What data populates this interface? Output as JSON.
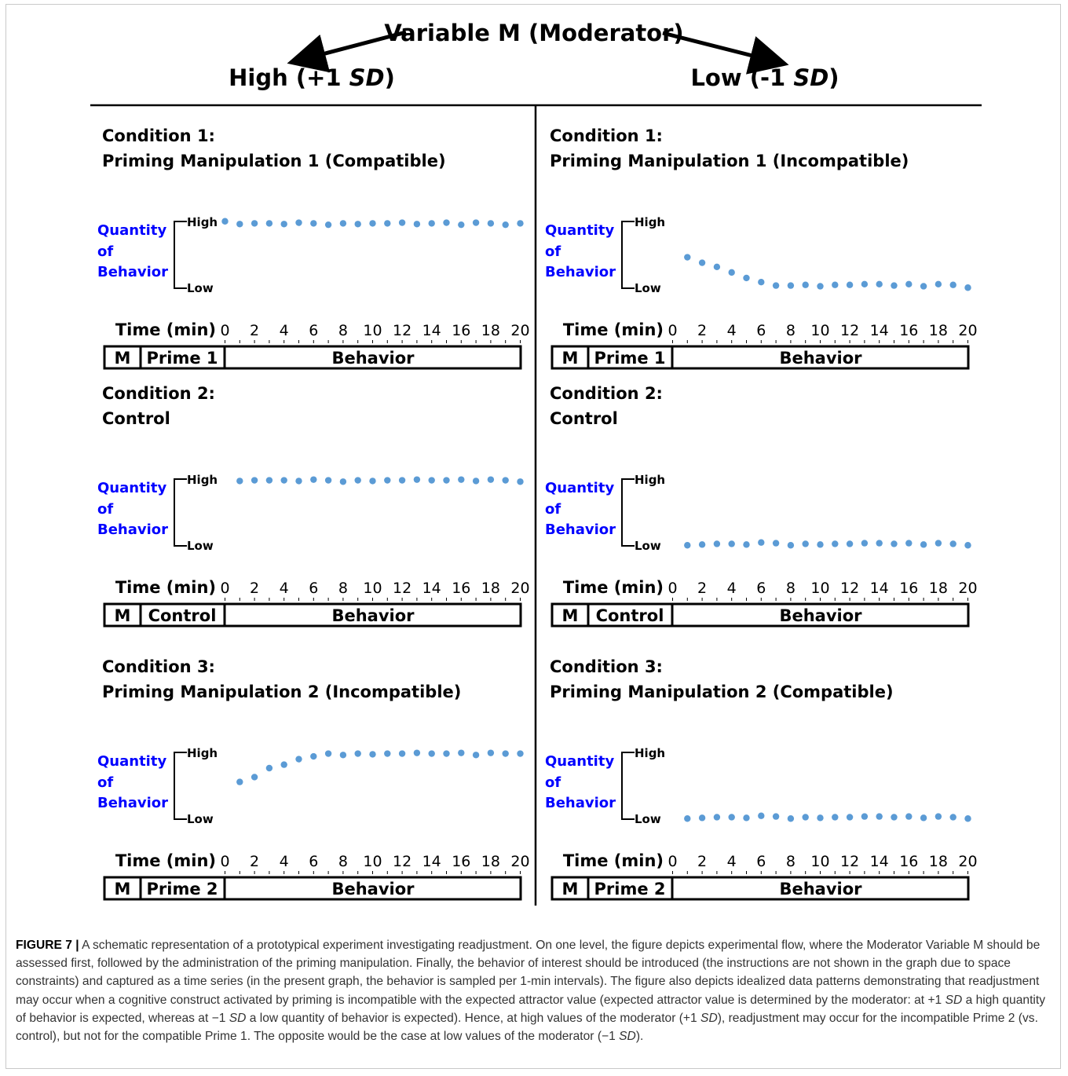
{
  "figure": {
    "moderator_title": "Variable M (Moderator)",
    "columns": [
      {
        "label_pre": "High (+1 ",
        "label_sd": "SD",
        "label_post": ")"
      },
      {
        "label_pre": "Low (-1 ",
        "label_sd": "SD",
        "label_post": ")"
      }
    ],
    "y_label_lines": [
      "Quantity",
      "of",
      "Behavior"
    ],
    "y_high": "High",
    "y_low": "Low",
    "time_label": "Time (min)",
    "time_ticks": [
      "0",
      "2",
      "4",
      "6",
      "8",
      "10",
      "12",
      "14",
      "16",
      "18",
      "20"
    ],
    "flow_m": "M",
    "flow_behavior": "Behavior",
    "colors": {
      "dots": "#5b9bd5",
      "axis_label": "#0000ff"
    },
    "panels": [
      {
        "id": "high-c1",
        "col": 0,
        "row": 0,
        "cond": "Condition 1:",
        "desc": "Priming Manipulation 1 (Compatible)",
        "flow_mid": "Prime 1",
        "chart_data": {
          "type": "scatter",
          "x": [
            0,
            1,
            2,
            3,
            4,
            5,
            6,
            7,
            8,
            9,
            10,
            11,
            12,
            13,
            14,
            15,
            16,
            17,
            18,
            19,
            20
          ],
          "y": [
            0.98,
            0.94,
            0.95,
            0.95,
            0.94,
            0.96,
            0.95,
            0.93,
            0.95,
            0.94,
            0.95,
            0.95,
            0.96,
            0.94,
            0.95,
            0.96,
            0.93,
            0.96,
            0.95,
            0.93,
            0.95
          ],
          "ylim": [
            0,
            1
          ]
        }
      },
      {
        "id": "low-c1",
        "col": 1,
        "row": 0,
        "cond": "Condition 1:",
        "desc": "Priming Manipulation 1 (Incompatible)",
        "flow_mid": "Prime 1",
        "chart_data": {
          "type": "scatter",
          "x": [
            1,
            2,
            3,
            4,
            5,
            6,
            7,
            8,
            9,
            10,
            11,
            12,
            13,
            14,
            15,
            16,
            17,
            18,
            19,
            20
          ],
          "y": [
            0.46,
            0.38,
            0.32,
            0.24,
            0.16,
            0.1,
            0.05,
            0.05,
            0.06,
            0.04,
            0.06,
            0.06,
            0.07,
            0.07,
            0.05,
            0.07,
            0.04,
            0.07,
            0.06,
            0.02
          ],
          "ylim": [
            0,
            1
          ]
        }
      },
      {
        "id": "high-c2",
        "col": 0,
        "row": 1,
        "cond": "Condition 2:",
        "desc": "Control",
        "flow_mid": "Control",
        "chart_data": {
          "type": "scatter",
          "x": [
            1,
            2,
            3,
            4,
            5,
            6,
            7,
            8,
            9,
            10,
            11,
            12,
            13,
            14,
            15,
            16,
            17,
            18,
            19,
            20
          ],
          "y": [
            0.95,
            0.96,
            0.96,
            0.96,
            0.95,
            0.97,
            0.96,
            0.94,
            0.96,
            0.95,
            0.96,
            0.96,
            0.97,
            0.96,
            0.96,
            0.97,
            0.95,
            0.97,
            0.96,
            0.94
          ],
          "ylim": [
            0,
            1
          ]
        }
      },
      {
        "id": "low-c2",
        "col": 1,
        "row": 1,
        "cond": "Condition 2:",
        "desc": "Control",
        "flow_mid": "Control",
        "chart_data": {
          "type": "scatter",
          "x": [
            1,
            2,
            3,
            4,
            5,
            6,
            7,
            8,
            9,
            10,
            11,
            12,
            13,
            14,
            15,
            16,
            17,
            18,
            19,
            20
          ],
          "y": [
            0.02,
            0.03,
            0.04,
            0.04,
            0.03,
            0.06,
            0.05,
            0.02,
            0.04,
            0.03,
            0.04,
            0.04,
            0.05,
            0.05,
            0.04,
            0.05,
            0.03,
            0.05,
            0.04,
            0.02
          ],
          "ylim": [
            0,
            1
          ]
        }
      },
      {
        "id": "high-c3",
        "col": 0,
        "row": 2,
        "cond": "Condition 3:",
        "desc": "Priming Manipulation 2 (Incompatible)",
        "flow_mid": "Prime 2",
        "chart_data": {
          "type": "scatter",
          "x": [
            1,
            2,
            3,
            4,
            5,
            6,
            7,
            8,
            9,
            10,
            11,
            12,
            13,
            14,
            15,
            16,
            17,
            18,
            19,
            20
          ],
          "y": [
            0.55,
            0.62,
            0.75,
            0.8,
            0.88,
            0.92,
            0.96,
            0.94,
            0.96,
            0.95,
            0.96,
            0.96,
            0.97,
            0.96,
            0.96,
            0.97,
            0.94,
            0.97,
            0.96,
            0.96
          ],
          "ylim": [
            0,
            1
          ]
        }
      },
      {
        "id": "low-c3",
        "col": 1,
        "row": 2,
        "cond": "Condition 3:",
        "desc": "Priming Manipulation 2 (Compatible)",
        "flow_mid": "Prime 2",
        "chart_data": {
          "type": "scatter",
          "x": [
            1,
            2,
            3,
            4,
            5,
            6,
            7,
            8,
            9,
            10,
            11,
            12,
            13,
            14,
            15,
            16,
            17,
            18,
            19,
            20
          ],
          "y": [
            0.02,
            0.03,
            0.04,
            0.04,
            0.03,
            0.06,
            0.05,
            0.02,
            0.04,
            0.03,
            0.04,
            0.04,
            0.05,
            0.05,
            0.04,
            0.05,
            0.03,
            0.05,
            0.04,
            0.02
          ],
          "ylim": [
            0,
            1
          ]
        }
      }
    ]
  },
  "caption": {
    "label": "FIGURE 7 |",
    "parts": [
      " A schematic representation of a prototypical experiment investigating readjustment. On one level, the figure depicts experimental flow, where the Moderator Variable M should be assessed first, followed by the administration of the priming manipulation. Finally, the behavior of interest should be introduced (the instructions are not shown in the graph due to space constraints) and captured as a time series (in the present graph, the behavior is sampled per 1-min intervals). The figure also depicts idealized data patterns demonstrating that readjustment may occur when a cognitive construct activated by priming is incompatible with the expected attractor value (expected attractor value is determined by the moderator: at +1 ",
      "SD",
      " a high quantity of behavior is expected, whereas at −1 ",
      "SD",
      " a low quantity of behavior is expected). Hence, at high values of the moderator (+1 ",
      "SD",
      "), readjustment may occur for the incompatible Prime 2 (vs. control), but not for the compatible Prime 1. The opposite would be the case at low values of the moderator (−1 ",
      "SD",
      ")."
    ]
  }
}
